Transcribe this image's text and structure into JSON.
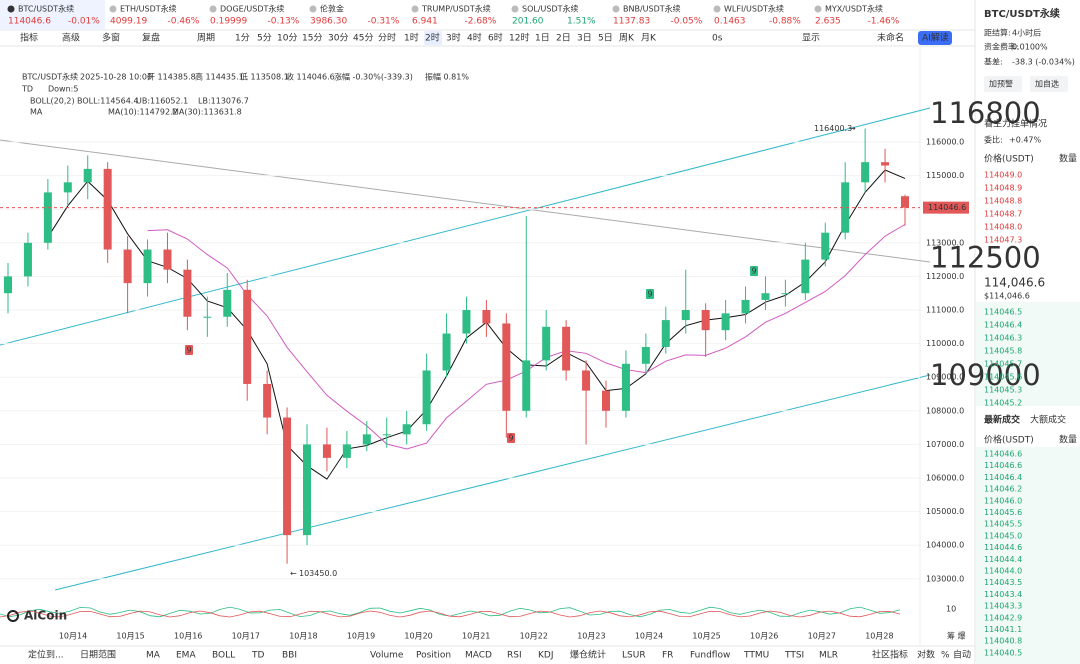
{
  "tickers": [
    {
      "name": "BTC/USDT永续",
      "price": "114046.6",
      "change": "-0.01%"
    },
    {
      "name": "ETH/USDT永续",
      "price": "4099.19",
      "change": "-0.46%"
    },
    {
      "name": "DOGE/USDT永续",
      "price": "0.19999",
      "change": "-0.13%"
    },
    {
      "name": "伦敦金",
      "price": "3986.30",
      "change": "-0.31%"
    },
    {
      "name": "TRUMP/USDT永续",
      "price": "6.941",
      "change": "-2.68%"
    },
    {
      "name": "SOL/USDT永续",
      "price": "201.60",
      "change": "1.51%"
    },
    {
      "name": "BNB/USDT永续",
      "price": "1137.83",
      "change": "-0.05%"
    },
    {
      "name": "WLFI/USDT永续",
      "price": "0.1463",
      "change": "-0.88%"
    },
    {
      "name": "MYX/USDT永续",
      "price": "2.635",
      "change": "-1.46%"
    }
  ],
  "toolbar": {
    "left": [
      "指标",
      "高级",
      "多窗",
      "复盘"
    ],
    "period_label": "周期",
    "periods": [
      "1分",
      "5分",
      "10分",
      "15分",
      "30分",
      "45分",
      "分时",
      "1时",
      "2时",
      "3时",
      "4时",
      "6时",
      "12时",
      "1日",
      "2日",
      "3日",
      "5日",
      "周K",
      "月K"
    ],
    "right": [
      "0s",
      "显示",
      "未命名",
      "AI解读"
    ]
  },
  "info": [
    "BTC/USDT永续",
    "2025-10-28 10:00",
    "开 114385.8",
    "高 114435.1",
    "低 113508.1",
    "收 114046.6",
    "涨幅 -0.30%(-339.3)",
    "振幅 0.81%"
  ],
  "indicators": {
    "td": [
      "TD",
      "Down:5"
    ],
    "boll": [
      "BOLL(20,2)",
      "BOLL:114564.4",
      "UB:116052.1",
      "LB:113076.7"
    ],
    "ma": [
      "MA",
      "MA(10):114792.2",
      "MA(30):113631.8"
    ]
  },
  "chart": {
    "ylim": [
      102667,
      117250
    ],
    "yticks": [
      {
        "value": 103000,
        "label": "103000.0"
      },
      {
        "value": 104000,
        "label": "104000.0"
      },
      {
        "value": 105000,
        "label": "105000.0"
      },
      {
        "value": 106000,
        "label": "106000.0"
      },
      {
        "value": 107000,
        "label": "107000.0"
      },
      {
        "value": 108000,
        "label": "108000.0"
      },
      {
        "value": 109000,
        "label": "109000.0"
      },
      {
        "value": 110000,
        "label": "110000.0"
      },
      {
        "value": 111000,
        "label": "111000.0"
      },
      {
        "value": 112000,
        "label": "112000.0"
      },
      {
        "value": 113000,
        "label": "113000.0"
      },
      {
        "value": 114000,
        "label": "114000.0"
      },
      {
        "value": 115000,
        "label": "115000.0"
      },
      {
        "value": 116000,
        "label": "116000.0"
      }
    ],
    "dates": [
      "10月14",
      "10月15",
      "10月16",
      "10月17",
      "10月18",
      "10月19",
      "10月20",
      "10月21",
      "10月22",
      "10月23",
      "10月24",
      "10月25",
      "10月26",
      "10月27",
      "10月28"
    ],
    "candles": [
      [
        111500,
        112400,
        110900,
        112000
      ],
      [
        112000,
        113300,
        111700,
        113000
      ],
      [
        113000,
        114900,
        112800,
        114500
      ],
      [
        114500,
        115300,
        114100,
        114800
      ],
      [
        114800,
        115600,
        114300,
        115200
      ],
      [
        115200,
        115400,
        112400,
        112800
      ],
      [
        112800,
        113200,
        110900,
        111800
      ],
      [
        111800,
        113100,
        111400,
        112800
      ],
      [
        112800,
        113300,
        111800,
        112200
      ],
      [
        112200,
        112500,
        110400,
        110800
      ],
      [
        110800,
        111400,
        110200,
        110800
      ],
      [
        110800,
        112100,
        110500,
        111600
      ],
      [
        111600,
        111900,
        108300,
        108800
      ],
      [
        108800,
        109200,
        107300,
        107800
      ],
      [
        107800,
        108100,
        103450,
        104300
      ],
      [
        104300,
        107600,
        104000,
        107000
      ],
      [
        107000,
        107500,
        106200,
        106600
      ],
      [
        106600,
        107400,
        106300,
        107000
      ],
      [
        107000,
        107700,
        106800,
        107300
      ],
      [
        107300,
        107800,
        106900,
        107300
      ],
      [
        107300,
        108000,
        107000,
        107600
      ],
      [
        107600,
        109700,
        107400,
        109200
      ],
      [
        109200,
        110900,
        109000,
        110300
      ],
      [
        110300,
        111400,
        110000,
        111000
      ],
      [
        111000,
        111300,
        110200,
        110600
      ],
      [
        110600,
        110900,
        107200,
        108000
      ],
      [
        108000,
        113800,
        107800,
        109500
      ],
      [
        109500,
        111000,
        109200,
        110500
      ],
      [
        110500,
        110700,
        108900,
        109200
      ],
      [
        109200,
        109500,
        107000,
        108600
      ],
      [
        108600,
        108900,
        107500,
        108000
      ],
      [
        108000,
        109800,
        107800,
        109400
      ],
      [
        109400,
        110300,
        109100,
        109900
      ],
      [
        109900,
        111100,
        109700,
        110700
      ],
      [
        110700,
        112200,
        110300,
        111000
      ],
      [
        111000,
        111200,
        109600,
        110400
      ],
      [
        110400,
        111300,
        110100,
        110900
      ],
      [
        110900,
        111700,
        110600,
        111300
      ],
      [
        111300,
        112000,
        111000,
        111500
      ],
      [
        111500,
        111900,
        111100,
        111500
      ],
      [
        111500,
        113000,
        111300,
        112500
      ],
      [
        112500,
        113600,
        112300,
        113300
      ],
      [
        113300,
        115400,
        113100,
        114800
      ],
      [
        114800,
        116400.3,
        114500,
        115400
      ],
      [
        115400,
        115800,
        114800,
        115300
      ],
      [
        114385.8,
        114435.1,
        113508.1,
        114046.6
      ]
    ],
    "annotations": [
      116800,
      112500,
      109000
    ],
    "high_marker": 116400.3,
    "low_marker": {
      "value": 103450,
      "label": "103450.0"
    },
    "last_price": {
      "value": 114046.6,
      "label": "114046.6"
    },
    "td_counts": [
      "9",
      "9",
      "9",
      "9"
    ],
    "volume_tick": "10",
    "volume_tag": "筹 爆",
    "logo": "AiCoin"
  },
  "panel": {
    "symbol": "BTC/USDT永续",
    "settle": [
      "距结算:",
      "4小时后"
    ],
    "funding": [
      "资金费率:",
      "0.0100%"
    ],
    "basis": [
      "基差:",
      "-38.3 (-0.034%)"
    ],
    "buttons": [
      "加预警",
      "加自选"
    ],
    "orderbook_title": "看主力挂单情况",
    "ratio": [
      "委比:",
      "+0.47%"
    ],
    "book_header": [
      "价格(USDT)",
      "数量"
    ],
    "asks": [
      "114049.0",
      "114048.9",
      "114048.8",
      "114048.7",
      "114048.0",
      "114047.3"
    ],
    "last": "114,046.6",
    "last_usd": "$114,046.6",
    "bids": [
      "114046.5",
      "114046.4",
      "114046.3",
      "114045.8",
      "114045.7",
      "114045.6",
      "114045.3",
      "114045.2"
    ],
    "tabs": [
      "最新成交",
      "大额成交"
    ],
    "trade_header": [
      "价格(USDT)",
      "数量"
    ],
    "trades": [
      "114046.6",
      "114046.6",
      "114046.4",
      "114046.2",
      "114046.0",
      "114045.6",
      "114045.5",
      "114045.0",
      "114044.6",
      "114044.4",
      "114044.0",
      "114043.5",
      "114043.4",
      "114043.3",
      "114042.9",
      "114041.1",
      "114040.8",
      "114040.5"
    ]
  },
  "bottom": {
    "left": [
      "定位到...",
      "日期范围"
    ],
    "indicators": [
      "MA",
      "EMA",
      "BOLL",
      "TD",
      "BBI",
      "Volume",
      "Position",
      "MACD",
      "RSI",
      "KDJ",
      "爆仓统计",
      "LSUR",
      "FR",
      "Fundflow",
      "TTMU",
      "TTSI",
      "MLR",
      "社区指标"
    ],
    "right": [
      "对数",
      "%",
      "自动"
    ]
  }
}
